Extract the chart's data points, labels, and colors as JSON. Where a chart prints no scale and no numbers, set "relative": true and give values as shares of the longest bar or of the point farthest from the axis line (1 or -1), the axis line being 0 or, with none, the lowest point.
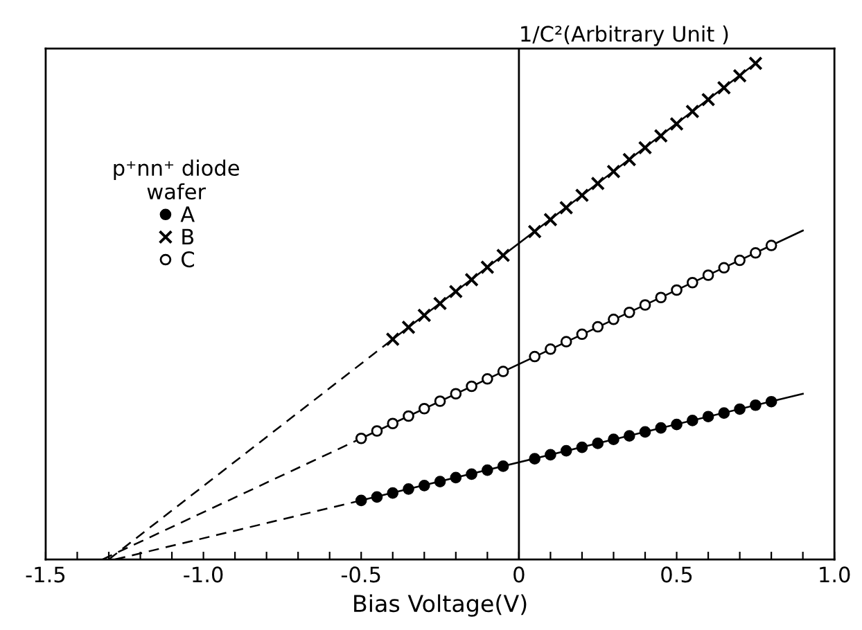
{
  "chart_data": {
    "type": "scatter",
    "relative": true,
    "xlabel": "Bias Voltage(V)",
    "ylabel": "1/C²(Arbitrary Unit )",
    "legend_title": "p⁺nn⁺ diode\nwafer",
    "legend": "top left",
    "grid": false,
    "ref_lines": [
      {
        "axis": "x",
        "value": 0,
        "color": "#000000",
        "line_style": "solid"
      }
    ],
    "xlim": [
      -1.5,
      1.0
    ],
    "xticks": [
      -1.5,
      {
        "value": -1.4,
        "label": null
      },
      {
        "value": -1.3,
        "label": null
      },
      {
        "value": -1.2,
        "label": null
      },
      {
        "value": -1.1,
        "label": null
      },
      {
        "value": -1.0,
        "label": "-1.0"
      },
      {
        "value": -0.9,
        "label": null
      },
      {
        "value": -0.8,
        "label": null
      },
      {
        "value": -0.7,
        "label": null
      },
      {
        "value": -0.6,
        "label": null
      },
      {
        "value": -0.5,
        "label": "-0.5"
      },
      {
        "value": -0.4,
        "label": null
      },
      {
        "value": -0.3,
        "label": null
      },
      {
        "value": -0.2,
        "label": null
      },
      {
        "value": -0.1,
        "label": null
      },
      0,
      {
        "value": 0.1,
        "label": null
      },
      {
        "value": 0.2,
        "label": null
      },
      {
        "value": 0.3,
        "label": null
      },
      {
        "value": 0.4,
        "label": null
      },
      0.5,
      {
        "value": 0.6,
        "label": null
      },
      {
        "value": 0.7,
        "label": null
      },
      {
        "value": 0.8,
        "label": null
      },
      {
        "value": 0.9,
        "label": null
      },
      {
        "value": 1.0,
        "label": "1.0"
      }
    ],
    "series": [
      {
        "name": "A",
        "marker": "circle",
        "color": "#000000",
        "x": [
          -0.5,
          -0.45,
          -0.4,
          -0.35,
          -0.3,
          -0.25,
          -0.2,
          -0.15,
          -0.1,
          -0.05,
          0.05,
          0.1,
          0.15,
          0.2,
          0.25,
          0.3,
          0.35,
          0.4,
          0.45,
          0.5,
          0.55,
          0.6,
          0.65,
          0.7,
          0.75,
          0.8
        ],
        "values": [
          0.119,
          0.126,
          0.134,
          0.142,
          0.149,
          0.157,
          0.165,
          0.172,
          0.18,
          0.188,
          0.203,
          0.211,
          0.219,
          0.226,
          0.234,
          0.242,
          0.249,
          0.257,
          0.265,
          0.272,
          0.28,
          0.288,
          0.295,
          0.303,
          0.311,
          0.318
        ]
      },
      {
        "name": "B",
        "marker": "cross",
        "color": "#000000",
        "x": [
          -0.4,
          -0.35,
          -0.3,
          -0.25,
          -0.2,
          -0.15,
          -0.1,
          -0.05,
          0.05,
          0.1,
          0.15,
          0.2,
          0.25,
          0.3,
          0.35,
          0.4,
          0.45,
          0.5,
          0.55,
          0.6,
          0.65,
          0.7,
          0.75
        ],
        "values": [
          0.444,
          0.468,
          0.492,
          0.516,
          0.54,
          0.564,
          0.589,
          0.613,
          0.661,
          0.685,
          0.709,
          0.734,
          0.758,
          0.782,
          0.806,
          0.83,
          0.854,
          0.878,
          0.903,
          0.927,
          0.951,
          0.975,
          1.0
        ]
      },
      {
        "name": "C",
        "marker": "circle",
        "color": "#ffffff",
        "x": [
          -0.5,
          -0.45,
          -0.4,
          -0.35,
          -0.3,
          -0.25,
          -0.2,
          -0.15,
          -0.1,
          -0.05,
          0.05,
          0.1,
          0.15,
          0.2,
          0.25,
          0.3,
          0.35,
          0.4,
          0.45,
          0.5,
          0.55,
          0.6,
          0.65,
          0.7,
          0.75,
          0.8
        ],
        "values": [
          0.244,
          0.259,
          0.274,
          0.289,
          0.304,
          0.319,
          0.334,
          0.349,
          0.364,
          0.379,
          0.409,
          0.424,
          0.439,
          0.454,
          0.469,
          0.484,
          0.498,
          0.513,
          0.528,
          0.543,
          0.558,
          0.573,
          0.588,
          0.603,
          0.618,
          0.633
        ]
      },
      {
        "type": "line",
        "line_style": "solid",
        "color": "#000000",
        "x": [
          -0.5,
          0.9
        ],
        "values": [
          0.119,
          0.334
        ]
      },
      {
        "type": "line",
        "line_style": "dashed",
        "color": "#000000",
        "x": [
          -1.28,
          -0.5
        ],
        "values": [
          0,
          0.119
        ]
      },
      {
        "type": "line",
        "line_style": "solid",
        "color": "#000000",
        "x": [
          -0.5,
          0.9
        ],
        "values": [
          0.244,
          0.663
        ]
      },
      {
        "type": "line",
        "line_style": "dashed",
        "color": "#000000",
        "x": [
          -1.32,
          -0.5
        ],
        "values": [
          0,
          0.244
        ]
      },
      {
        "type": "line",
        "line_style": "solid",
        "color": "#000000",
        "x": [
          -0.4,
          0.75
        ],
        "values": [
          0.444,
          1.0
        ]
      },
      {
        "type": "line",
        "line_style": "dashed",
        "color": "#000000",
        "x": [
          -1.3,
          -0.4
        ],
        "values": [
          0,
          0.444
        ]
      }
    ]
  }
}
